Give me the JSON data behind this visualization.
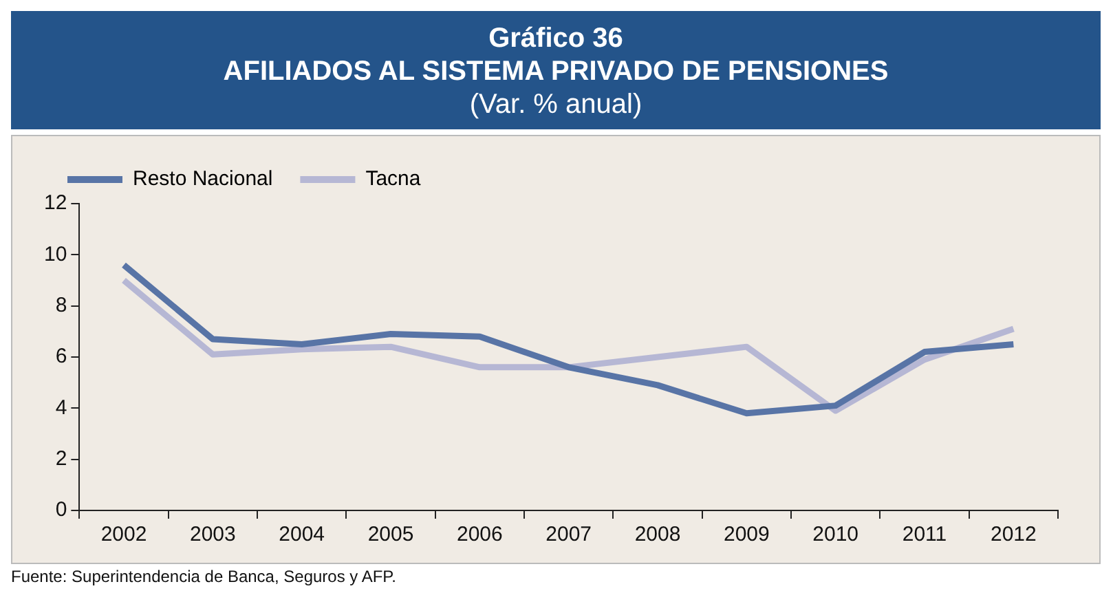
{
  "chart_data": {
    "type": "line",
    "title": "Gráfico 36",
    "subtitle": "AFILIADOS AL SISTEMA PRIVADO DE PENSIONES",
    "ylabel": "(Var. % anual)",
    "categories": [
      "2002",
      "2003",
      "2004",
      "2005",
      "2006",
      "2007",
      "2008",
      "2009",
      "2010",
      "2011",
      "2012"
    ],
    "series": [
      {
        "name": "Resto Nacional",
        "color": "#5874a6",
        "values": [
          9.6,
          6.7,
          6.5,
          6.9,
          6.8,
          5.6,
          4.9,
          3.8,
          4.1,
          6.2,
          6.5
        ]
      },
      {
        "name": "Tacna",
        "color": "#b6b7d4",
        "values": [
          9.0,
          6.1,
          6.3,
          6.4,
          5.6,
          5.6,
          6.0,
          6.4,
          3.9,
          5.9,
          7.1
        ]
      }
    ],
    "ylim": [
      0,
      12
    ],
    "yticks": [
      0,
      2,
      4,
      6,
      8,
      10,
      12
    ],
    "grid": false,
    "legend": "top left",
    "marker": "none",
    "line_style": "solid",
    "annotations": [
      "Fuente: Superintendencia de Banca, Seguros y AFP."
    ]
  }
}
